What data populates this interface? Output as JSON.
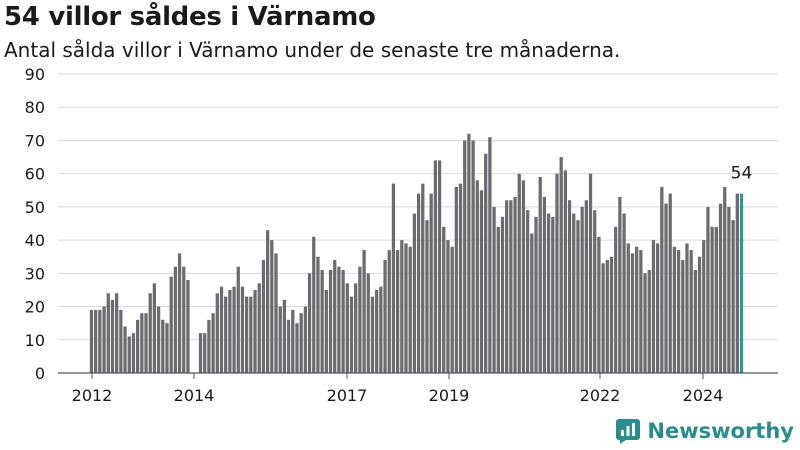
{
  "header": {
    "title": "54 villor såldes i Värnamo",
    "subtitle": "Antal sålda villor i Värnamo under de senaste tre månaderna."
  },
  "brand": {
    "name": "Newsworthy",
    "color": "#2a8c8c"
  },
  "chart_data": {
    "type": "bar",
    "title": "54 villor såldes i Värnamo",
    "subtitle": "Antal sålda villor i Värnamo under de senaste tre månaderna.",
    "xlabel": "",
    "ylabel": "",
    "ylim": [
      0,
      90
    ],
    "yticks": [
      0,
      10,
      20,
      30,
      40,
      50,
      60,
      70,
      80,
      90
    ],
    "xticks": [
      "2012",
      "2014",
      "2017",
      "2019",
      "2022",
      "2024"
    ],
    "grid": true,
    "bar_color": "#6b6b70",
    "highlight_color": "#2a9d8f",
    "highlight_label": "54",
    "values": [
      19,
      19,
      19,
      20,
      24,
      22,
      24,
      19,
      14,
      11,
      12,
      16,
      18,
      18,
      24,
      27,
      20,
      16,
      15,
      29,
      32,
      36,
      32,
      28,
      null,
      null,
      12,
      12,
      16,
      18,
      24,
      26,
      23,
      25,
      26,
      32,
      26,
      23,
      23,
      25,
      27,
      34,
      43,
      40,
      36,
      20,
      22,
      16,
      19,
      15,
      18,
      20,
      30,
      41,
      35,
      31,
      25,
      31,
      34,
      32,
      31,
      27,
      23,
      27,
      32,
      37,
      30,
      23,
      25,
      26,
      34,
      37,
      57,
      37,
      40,
      39,
      38,
      48,
      54,
      57,
      46,
      54,
      64,
      64,
      44,
      40,
      38,
      56,
      57,
      70,
      72,
      70,
      58,
      55,
      66,
      71,
      50,
      44,
      47,
      52,
      52,
      53,
      60,
      58,
      49,
      42,
      47,
      59,
      53,
      48,
      47,
      60,
      65,
      61,
      52,
      48,
      46,
      50,
      52,
      60,
      49,
      41,
      33,
      34,
      35,
      44,
      53,
      48,
      39,
      36,
      38,
      37,
      30,
      31,
      40,
      39,
      56,
      51,
      54,
      38,
      37,
      34,
      39,
      37,
      31,
      35,
      40,
      50,
      44,
      44,
      51,
      56,
      50,
      46,
      54,
      54
    ]
  }
}
